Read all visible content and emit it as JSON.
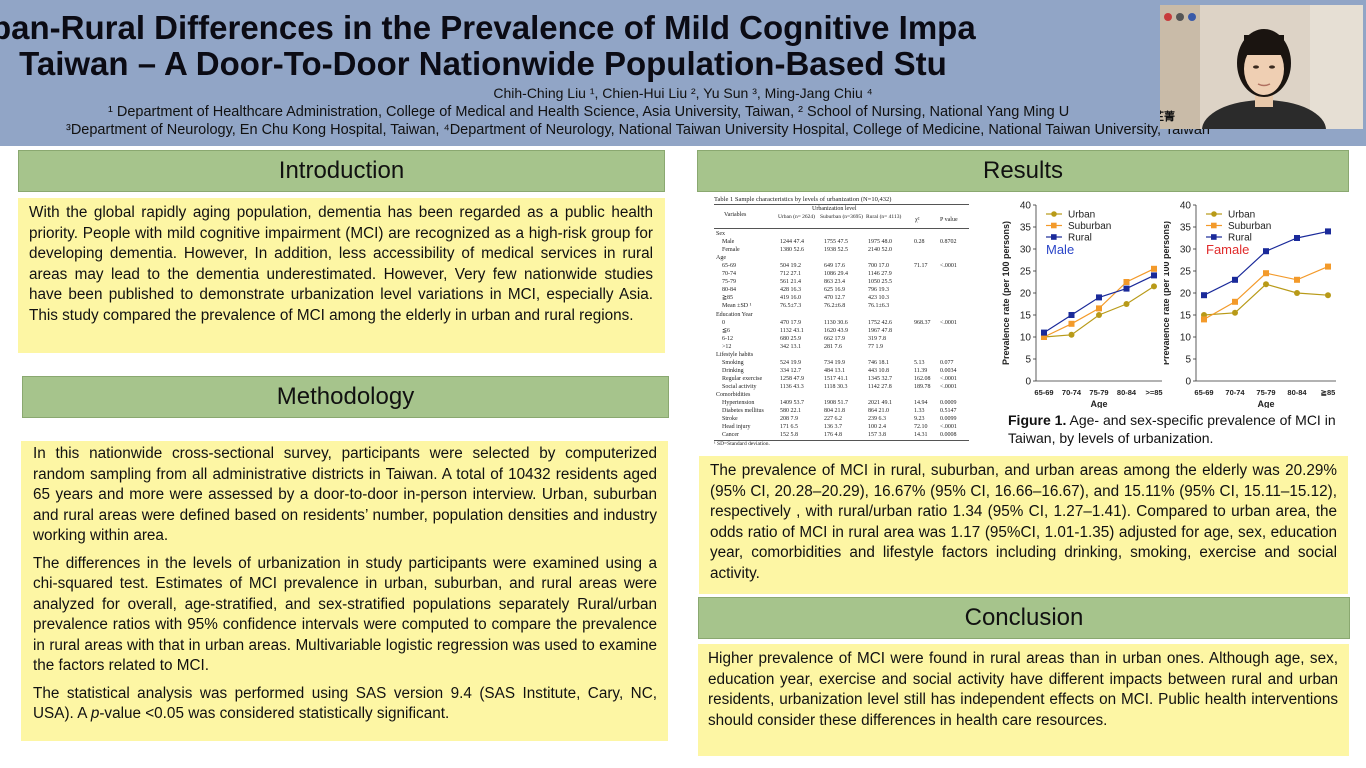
{
  "header": {
    "title_line1": "Urban-Rural Differences in the Prevalence of Mild Cognitive Impa",
    "title_line2": "Taiwan – A Door-To-Door Nationwide Population-Based Stu",
    "authors": "Chih-Ching Liu ¹, Chien-Hui Liu ², Yu Sun ³, Ming-Jang Chiu ⁴",
    "affiliation_line1": "¹ Department of Healthcare Administration, College of Medical and Health Science, Asia University, Taiwan, ² School of Nursing, National Yang Ming U",
    "affiliation_line2": "³Department of Neurology, En Chu Kong Hospital, Taiwan, ⁴Department of Neurology, National Taiwan University Hospital, College of Medicine, National Taiwan University, Taiwan"
  },
  "webcam": {
    "name_label": "劉芷菁"
  },
  "introduction": {
    "heading": "Introduction",
    "text": "With the global rapidly aging population, dementia has been regarded as a public health priority. People with mild cognitive impairment (MCI) are recognized as a high-risk group for developing dementia. However, In addition, less accessibility of medical services in rural areas may lead to the dementia underestimated. However, Very few nationwide studies have been published to demonstrate urbanization level variations in MCI, especially Asia. This study compared the prevalence of MCI among the elderly in urban and rural regions."
  },
  "methodology": {
    "heading": "Methodology",
    "p1": "In this nationwide cross-sectional survey, participants were selected by computerized random sampling from all administrative districts in Taiwan. A total of 10432 residents aged 65 years and more were assessed by a door-to-door in-person interview. Urban, suburban and rural areas were defined based on residents’ number, population densities and industry working within area.",
    "p2": "The differences in the levels of urbanization in study participants were examined using a chi-squared test. Estimates of MCI prevalence in urban, suburban, and rural areas were analyzed for overall, age-stratified, and sex-stratified populations separately Rural/urban prevalence ratios with 95% confidence intervals were computed to compare the prevalence in rural areas with that in urban areas. Multivariable logistic regression was used to examine the factors related to MCI.",
    "p3_a": " The statistical analysis was performed using SAS version 9.4 (SAS Institute, Cary, NC, USA). A ",
    "p3_italic": "p",
    "p3_b": "-value <0.05 was considered statistically significant."
  },
  "results": {
    "heading": "Results",
    "text": "The prevalence of MCI in rural, suburban, and urban areas among the elderly was 20.29% (95% CI, 20.28–20.29), 16.67% (95% CI, 16.66–16.67), and 15.11% (95% CI, 15.11–15.12), respectively , with rural/urban ratio 1.34 (95% CI, 1.27–1.41). Compared to urban area, the odds ratio of MCI in rural area was 1.17 (95%CI, 1.01-1.35) adjusted for age, sex, education year, comorbidities and lifestyle factors including drinking, smoking, exercise and social activity.",
    "figure_caption_bold": "Figure 1.",
    "figure_caption": " Age- and sex-specific prevalence of MCI in Taiwan, by levels of urbanization."
  },
  "conclusion": {
    "heading": "Conclusion",
    "text": "Higher prevalence of MCI were found in rural areas than in urban ones. Although age, sex, education year, exercise and social activity have different impacts between rural and urban residents, urbanization level still has independent effects on MCI. Public health interventions should consider these differences in health care resources."
  },
  "table": {
    "title": "Table 1 Sample characteristics by levels of urbanization (N=10,432)",
    "col_variables": "Variables",
    "col_level": "Urbanization level",
    "col_urban": "Urban (n= 2624)",
    "col_suburban": "Suburban (n=3695)",
    "col_rural": "Rural (n= 4113)",
    "col_chi": "χ²",
    "col_p": "P value",
    "rows": [
      [
        "Sex",
        "",
        "",
        "",
        "",
        "",
        ""
      ],
      [
        "Male",
        "1244 47.4",
        "1755 47.5",
        "1975 48.0",
        "",
        "0.28",
        "0.8702"
      ],
      [
        "Female",
        "1380 52.6",
        "1938 52.5",
        "2140 52.0",
        "",
        "",
        ""
      ],
      [
        "Age",
        "",
        "",
        "",
        "",
        "",
        ""
      ],
      [
        "65-69",
        "504 19.2",
        "649 17.6",
        "700 17.0",
        "",
        "71.17",
        "<.0001"
      ],
      [
        "70-74",
        "712 27.1",
        "1086 29.4",
        "1146 27.9",
        "",
        "",
        ""
      ],
      [
        "75-79",
        "561 21.4",
        "863 23.4",
        "1050 25.5",
        "",
        "",
        ""
      ],
      [
        "80-84",
        "428 16.3",
        "625 16.9",
        "796 19.3",
        "",
        "",
        ""
      ],
      [
        "≧85",
        "419 16.0",
        "470 12.7",
        "423 10.3",
        "",
        "",
        ""
      ],
      [
        "Mean ±SD ¹",
        "76.5±7.3",
        "76.2±6.8",
        "76.1±6.3",
        "",
        "",
        ""
      ],
      [
        "Education Year",
        "",
        "",
        "",
        "",
        "",
        ""
      ],
      [
        "0",
        "470 17.9",
        "1130 30.6",
        "1752 42.6",
        "",
        "968.37",
        "<.0001"
      ],
      [
        "≦6",
        "1132 43.1",
        "1620 43.9",
        "1967 47.8",
        "",
        "",
        ""
      ],
      [
        "6-12",
        "680 25.9",
        "662 17.9",
        "319 7.8",
        "",
        "",
        ""
      ],
      [
        ">12",
        "342 13.1",
        "281 7.6",
        "77 1.9",
        "",
        "",
        ""
      ],
      [
        "Lifestyle habits",
        "",
        "",
        "",
        "",
        "",
        ""
      ],
      [
        "Smoking",
        "524 19.9",
        "734 19.9",
        "746 18.1",
        "",
        "5.13",
        "0.077"
      ],
      [
        "Drinking",
        "334 12.7",
        "484 13.1",
        "443 10.8",
        "",
        "11.39",
        "0.0034"
      ],
      [
        "Regular exercise",
        "1258 47.9",
        "1517 41.1",
        "1345 32.7",
        "",
        "162.08",
        "<.0001"
      ],
      [
        "Social activity",
        "1136 43.3",
        "1118 30.3",
        "1142 27.8",
        "",
        "189.78",
        "<.0001"
      ],
      [
        "Comorbidities",
        "",
        "",
        "",
        "",
        "",
        ""
      ],
      [
        "Hypertension",
        "1409 53.7",
        "1908 51.7",
        "2021 49.1",
        "",
        "14.94",
        "0.0009"
      ],
      [
        "Diabetes mellitus",
        "580 22.1",
        "804 21.8",
        "864 21.0",
        "",
        "1.33",
        "0.5147"
      ],
      [
        "Stroke",
        "208 7.9",
        "227 6.2",
        "239 6.3",
        "",
        "9.23",
        "0.0099"
      ],
      [
        "Head injury",
        "171 6.5",
        "136 3.7",
        "100 2.4",
        "",
        "72.10",
        "<.0001"
      ],
      [
        "Cancer",
        "152 5.8",
        "176 4.8",
        "157 3.8",
        "",
        "14.31",
        "0.0008"
      ]
    ],
    "footnote": "¹ SD=Standard deviation."
  },
  "chart_data": [
    {
      "type": "line",
      "annotation": "Male",
      "categories": [
        "65-69",
        "70-74",
        "75-79",
        "80-84",
        ">=85"
      ],
      "xlabel": "Age",
      "ylabel": "Prevalence rate (per 100 persons)",
      "ylim": [
        0,
        40
      ],
      "yticks": [
        0,
        5,
        10,
        15,
        20,
        25,
        30,
        35,
        40
      ],
      "legend_position": "top-left",
      "series": [
        {
          "name": "Urban",
          "color": "#b89a18",
          "marker": "circle",
          "values": [
            10,
            10.5,
            15,
            17.5,
            21.5
          ]
        },
        {
          "name": "Suburban",
          "color": "#f39a2a",
          "marker": "square",
          "values": [
            10,
            13,
            16.5,
            22.5,
            25.5
          ]
        },
        {
          "name": "Rural",
          "color": "#1a2a9a",
          "marker": "square",
          "values": [
            11,
            15,
            19,
            21,
            24
          ]
        }
      ]
    },
    {
      "type": "line",
      "annotation": "Famale",
      "categories": [
        "65-69",
        "70-74",
        "75-79",
        "80-84",
        "≧85"
      ],
      "xlabel": "Age",
      "ylabel": "Prevalence rate (per 100 persons)",
      "ylim": [
        0,
        40
      ],
      "yticks": [
        0,
        5,
        10,
        15,
        20,
        25,
        30,
        35,
        40
      ],
      "legend_position": "top-left",
      "series": [
        {
          "name": "Urban",
          "color": "#b89a18",
          "marker": "circle",
          "values": [
            15,
            15.5,
            22,
            20,
            19.5
          ]
        },
        {
          "name": "Suburban",
          "color": "#f39a2a",
          "marker": "square",
          "values": [
            14,
            18,
            24.5,
            23,
            26
          ]
        },
        {
          "name": "Rural",
          "color": "#1a2a9a",
          "marker": "square",
          "values": [
            19.5,
            23,
            29.5,
            32.5,
            34
          ]
        }
      ]
    }
  ]
}
